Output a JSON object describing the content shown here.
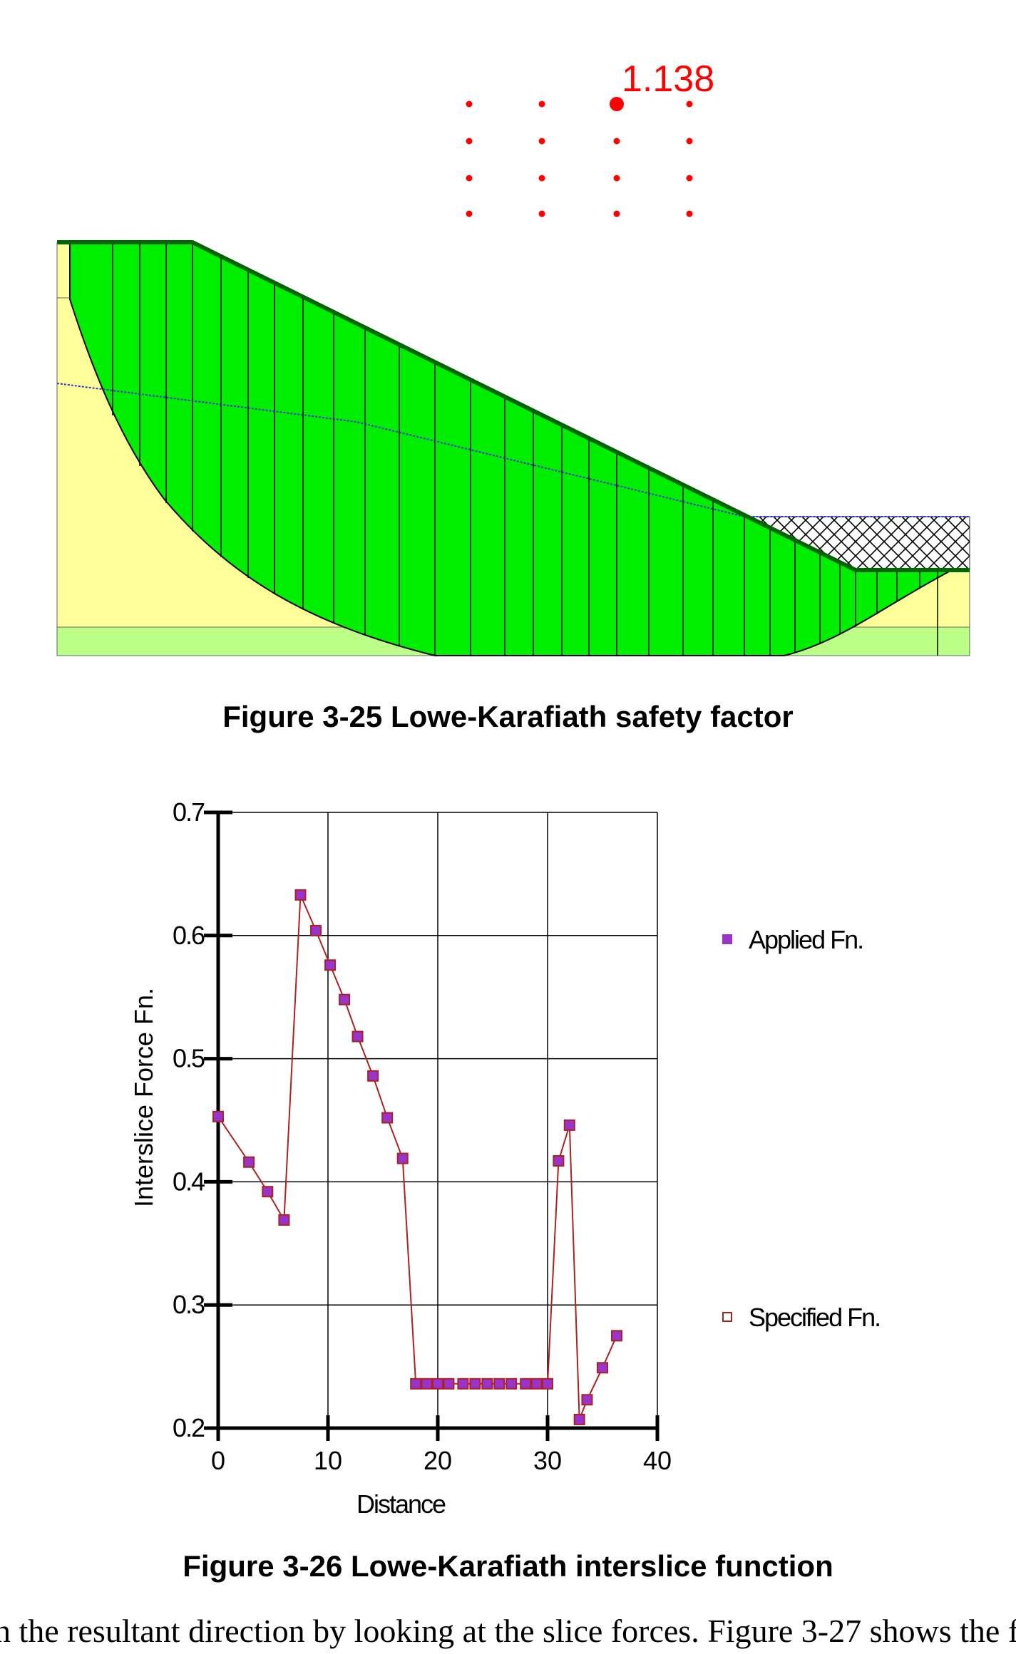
{
  "figure25": {
    "caption": "Figure 3-25 Lowe-Karafiath safety factor",
    "safety_factor_label": "1.138",
    "colors": {
      "sliding_mass": "#00ee00",
      "soil_upper": "#ffff99",
      "soil_lower": "#bbff88",
      "outline": "#006600",
      "water_table": "#3333cc",
      "grid_points": "#ff0000"
    }
  },
  "chart_data": {
    "type": "scatter",
    "xlabel": "Distance",
    "ylabel": "Interslice Force Fn.",
    "xlim": [
      0,
      40
    ],
    "ylim": [
      0.2,
      0.7
    ],
    "xticks": [
      "0",
      "10",
      "20",
      "30",
      "40"
    ],
    "yticks": [
      "0.2",
      "0.3",
      "0.4",
      "0.5",
      "0.6",
      "0.7"
    ],
    "grid": true,
    "legend_position": "right",
    "series": [
      {
        "name": "Applied Fn.",
        "color": "#9933cc",
        "x": [
          0,
          2.8,
          4.5,
          6,
          7.5,
          8.9,
          10.2,
          11.5,
          12.7,
          14.1,
          15.4,
          16.8,
          18,
          19,
          20,
          21,
          22.3,
          23.4,
          24.5,
          25.6,
          26.7,
          28,
          29,
          30,
          31,
          32,
          32.9,
          33.6,
          35,
          36.3
        ],
        "y": [
          0.453,
          0.416,
          0.392,
          0.369,
          0.633,
          0.604,
          0.576,
          0.548,
          0.518,
          0.486,
          0.452,
          0.419,
          0.236,
          0.236,
          0.236,
          0.236,
          0.236,
          0.236,
          0.236,
          0.236,
          0.236,
          0.236,
          0.236,
          0.236,
          0.417,
          0.446,
          0.207,
          0.223,
          0.249,
          0.275
        ]
      },
      {
        "name": "Specified Fn.",
        "color": "#aa2222"
      }
    ]
  },
  "figure26": {
    "caption": "Figure 3-26 Lowe-Karafiath interslice function"
  },
  "body_text": "n the resultant direction by looking at the slice forces. Figure 3-27 shows the f"
}
